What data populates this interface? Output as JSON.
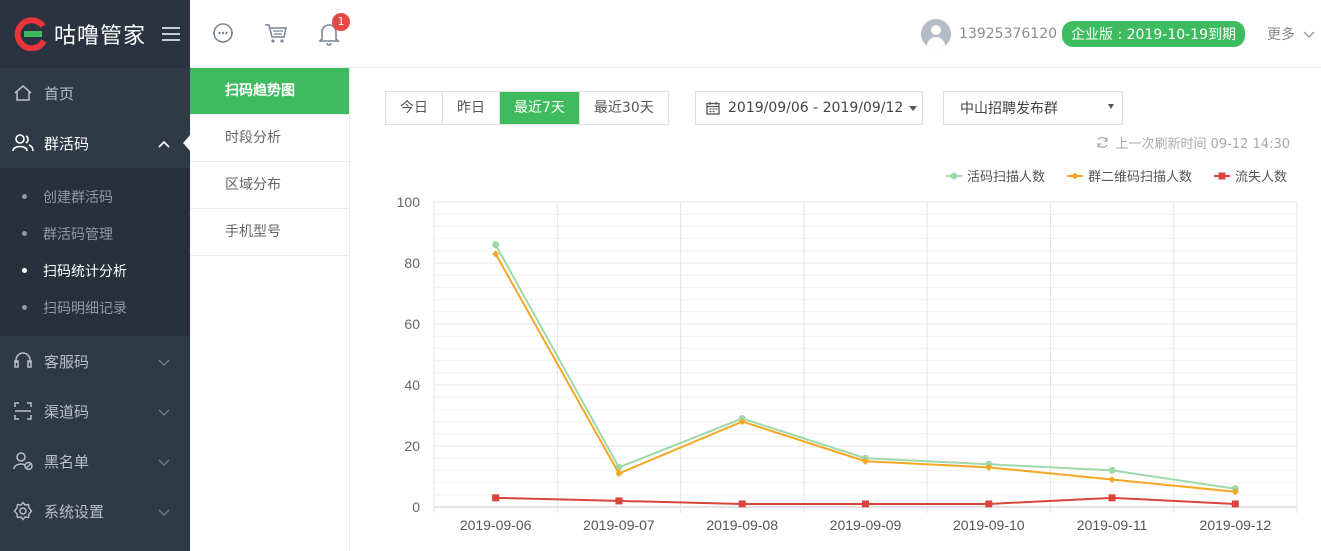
{
  "app": {
    "name": "咕噜管家"
  },
  "sidebar": {
    "items": [
      {
        "label": "首页"
      },
      {
        "label": "群活码"
      },
      {
        "label": "客服码"
      },
      {
        "label": "渠道码"
      },
      {
        "label": "黑名单"
      },
      {
        "label": "系统设置"
      }
    ],
    "submenu": [
      {
        "label": "创建群活码"
      },
      {
        "label": "群活码管理"
      },
      {
        "label": "扫码统计分析"
      },
      {
        "label": "扫码明细记录"
      }
    ]
  },
  "header": {
    "notification_count": "1",
    "phone": "13925376120",
    "plan": "企业版 : 2019-10-19到期",
    "more": "更多"
  },
  "subnav": [
    {
      "label": "扫码趋势图"
    },
    {
      "label": "时段分析"
    },
    {
      "label": "区域分布"
    },
    {
      "label": "手机型号"
    }
  ],
  "toolbar": {
    "tabs": [
      {
        "label": "今日"
      },
      {
        "label": "昨日"
      },
      {
        "label": "最近7天"
      },
      {
        "label": "最近30天"
      }
    ],
    "date_range": "2019/09/06 - 2019/09/12",
    "group_select": "中山招聘发布群",
    "refresh_text": "上一次刷新时间 09-12 14:30"
  },
  "colors": {
    "accent": "#3dbb5e",
    "series_1": "#9ed9a9",
    "series_2": "#f5a623",
    "series_3": "#d9453b"
  },
  "chart_data": {
    "type": "line",
    "x": [
      "2019-09-06",
      "2019-09-07",
      "2019-09-08",
      "2019-09-09",
      "2019-09-10",
      "2019-09-11",
      "2019-09-12"
    ],
    "ylim": [
      0,
      100
    ],
    "yticks": [
      0,
      20,
      40,
      60,
      80,
      100
    ],
    "grid": true,
    "legend_position": "top-right",
    "series": [
      {
        "name": "活码扫描人数",
        "color": "#9ed9a9",
        "marker": "circle",
        "values": [
          86,
          13,
          29,
          16,
          14,
          12,
          6
        ]
      },
      {
        "name": "群二维码扫描人数",
        "color": "#f5a623",
        "marker": "diamond",
        "values": [
          83,
          11,
          28,
          15,
          13,
          9,
          5
        ]
      },
      {
        "name": "流失人数",
        "color": "#d9453b",
        "marker": "square",
        "values": [
          3,
          2,
          1,
          1,
          1,
          3,
          1
        ]
      }
    ]
  }
}
